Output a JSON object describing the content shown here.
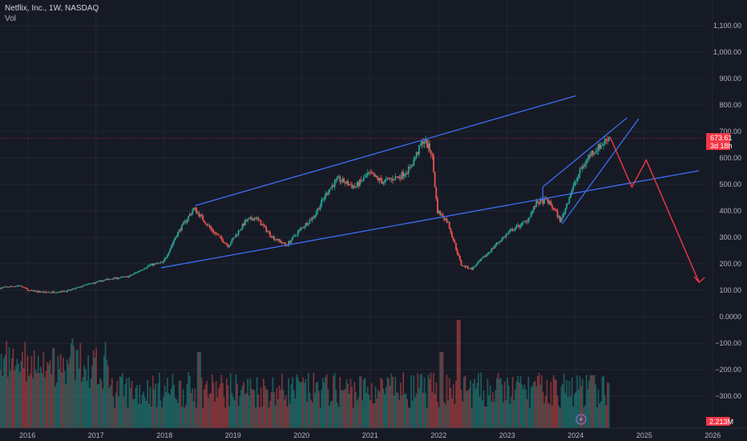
{
  "header": {
    "title": "Netflix, Inc., 1W, NASDAQ",
    "indicator": "Vol"
  },
  "colors": {
    "background": "#161a25",
    "grid": "#222634",
    "up": "#26a69a",
    "down": "#ef5350",
    "trend": "#3d6df2",
    "projection": "#f23645",
    "badge": "#f23645",
    "last": "#f23645"
  },
  "chart_data": {
    "type": "candlestick",
    "ylim": [
      -370,
      1160
    ],
    "xlim": [
      2015.6,
      2026.5
    ],
    "y_ticks": [
      {
        "v": 1100,
        "label": "1,100.00"
      },
      {
        "v": 1000,
        "label": "1,000.00"
      },
      {
        "v": 900,
        "label": "900.00"
      },
      {
        "v": 800,
        "label": "800.00"
      },
      {
        "v": 700,
        "label": "700.00"
      },
      {
        "v": 600,
        "label": "600.00"
      },
      {
        "v": 500,
        "label": "500.00"
      },
      {
        "v": 400,
        "label": "400.00"
      },
      {
        "v": 300,
        "label": "300.00"
      },
      {
        "v": 200,
        "label": "200.00"
      },
      {
        "v": 100,
        "label": "100.00"
      },
      {
        "v": 0,
        "label": "0.0000"
      },
      {
        "v": -100,
        "label": "−100.00"
      },
      {
        "v": -200,
        "label": "−200.00"
      },
      {
        "v": -300,
        "label": "−300.00"
      }
    ],
    "x_ticks": [
      {
        "v": 2016,
        "label": "2016"
      },
      {
        "v": 2017,
        "label": "2017"
      },
      {
        "v": 2018,
        "label": "2018"
      },
      {
        "v": 2019,
        "label": "2019"
      },
      {
        "v": 2020,
        "label": "2020"
      },
      {
        "v": 2021,
        "label": "2021"
      },
      {
        "v": 2022,
        "label": "2022"
      },
      {
        "v": 2023,
        "label": "2023"
      },
      {
        "v": 2024,
        "label": "2024"
      },
      {
        "v": 2025,
        "label": "2025"
      },
      {
        "v": 2026,
        "label": "2026"
      }
    ],
    "price_path": [
      [
        2015.6,
        108
      ],
      [
        2015.9,
        118
      ],
      [
        2016.05,
        98
      ],
      [
        2016.3,
        92
      ],
      [
        2016.6,
        97
      ],
      [
        2016.9,
        122
      ],
      [
        2017.2,
        142
      ],
      [
        2017.5,
        152
      ],
      [
        2017.8,
        195
      ],
      [
        2018.0,
        205
      ],
      [
        2018.2,
        312
      ],
      [
        2018.45,
        410
      ],
      [
        2018.7,
        330
      ],
      [
        2018.95,
        268
      ],
      [
        2019.2,
        360
      ],
      [
        2019.35,
        375
      ],
      [
        2019.6,
        300
      ],
      [
        2019.8,
        270
      ],
      [
        2020.0,
        330
      ],
      [
        2020.2,
        380
      ],
      [
        2020.4,
        475
      ],
      [
        2020.55,
        520
      ],
      [
        2020.8,
        490
      ],
      [
        2021.0,
        540
      ],
      [
        2021.2,
        510
      ],
      [
        2021.45,
        530
      ],
      [
        2021.6,
        560
      ],
      [
        2021.8,
        670
      ],
      [
        2021.92,
        620
      ],
      [
        2022.0,
        400
      ],
      [
        2022.15,
        360
      ],
      [
        2022.35,
        195
      ],
      [
        2022.5,
        180
      ],
      [
        2022.7,
        230
      ],
      [
        2022.9,
        285
      ],
      [
        2023.1,
        330
      ],
      [
        2023.3,
        360
      ],
      [
        2023.45,
        430
      ],
      [
        2023.6,
        440
      ],
      [
        2023.72,
        400
      ],
      [
        2023.8,
        360
      ],
      [
        2023.95,
        470
      ],
      [
        2024.1,
        560
      ],
      [
        2024.25,
        620
      ],
      [
        2024.4,
        650
      ],
      [
        2024.5,
        680
      ]
    ],
    "last_price": 673.61,
    "last_label": "673.61",
    "countdown_label": "3d 18h",
    "volume_label": "2.213M",
    "trendlines": [
      {
        "name": "channel-upper",
        "points": [
          [
            2018.45,
            420
          ],
          [
            2024.0,
            835
          ]
        ]
      },
      {
        "name": "channel-lower",
        "points": [
          [
            2017.95,
            185
          ],
          [
            2025.8,
            552
          ]
        ]
      },
      {
        "name": "wedge-upper",
        "points": [
          [
            2023.52,
            490
          ],
          [
            2024.75,
            752
          ]
        ]
      },
      {
        "name": "wedge-lower",
        "points": [
          [
            2023.8,
            350
          ],
          [
            2024.92,
            748
          ]
        ]
      },
      {
        "name": "wedge-left",
        "points": [
          [
            2023.52,
            440
          ],
          [
            2023.52,
            490
          ]
        ]
      }
    ],
    "projection": [
      [
        2024.5,
        680
      ],
      [
        2024.82,
        490
      ],
      [
        2025.03,
        592
      ],
      [
        2025.8,
        130
      ]
    ]
  }
}
